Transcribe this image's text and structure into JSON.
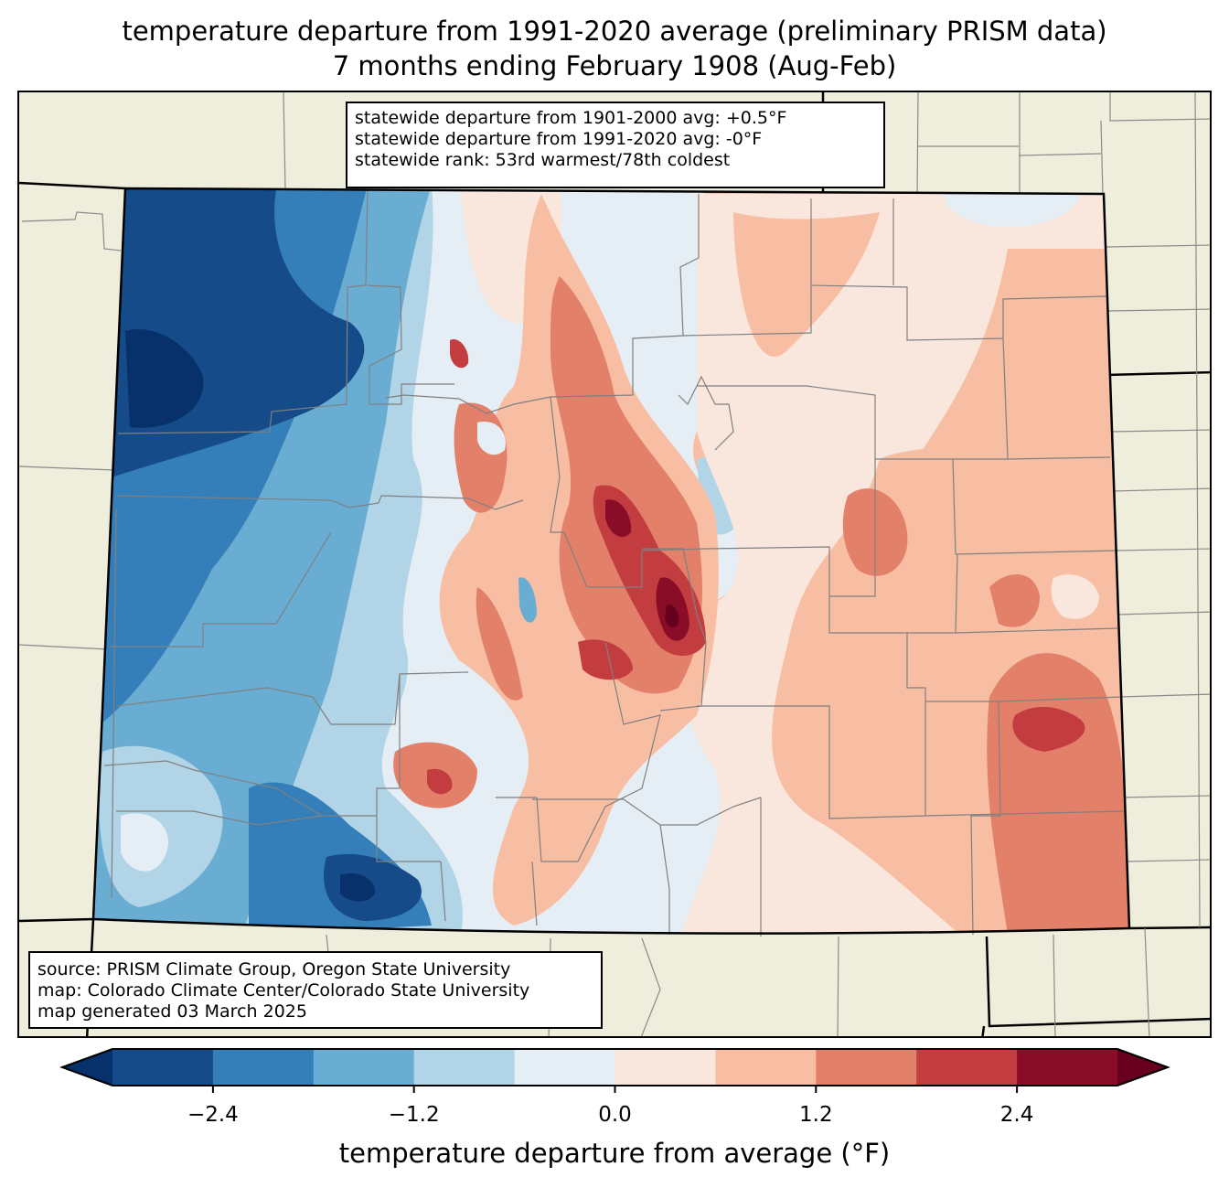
{
  "title": {
    "line1": "temperature departure from 1991-2020 average (preliminary PRISM data)",
    "line2": "7 months ending February 1908 (Aug-Feb)"
  },
  "stats_box": {
    "line1": "statewide departure from 1901-2000 avg: +0.5°F",
    "line2": "statewide departure from 1991-2020 avg: -0°F",
    "line3": "statewide rank: 53rd warmest/78th coldest"
  },
  "source_box": {
    "line1": "source: PRISM Climate Group, Oregon State University",
    "line2": "map: Colorado Climate Center/Colorado State University",
    "line3": "map generated 03 March 2025"
  },
  "colorbar": {
    "label": "temperature departure from average (°F)",
    "ticks": [
      "−2.4",
      "−1.2",
      "0.0",
      "1.2",
      "2.4"
    ],
    "tick_values": [
      -2.4,
      -1.2,
      0.0,
      1.2,
      2.4
    ],
    "range": [
      -3.0,
      3.0
    ],
    "bin_width": 0.6,
    "under_color": "#08306b",
    "over_color": "#67001f",
    "colors": [
      "#154b88",
      "#347fb9",
      "#6aadd2",
      "#b1d4e6",
      "#e5eef4",
      "#f9e7dd",
      "#f8bea3",
      "#e3806a",
      "#c33c3f",
      "#8a0d27"
    ]
  },
  "map": {
    "land_color": "#efeddb",
    "border_color": "#000000",
    "county_color": "#808080"
  }
}
